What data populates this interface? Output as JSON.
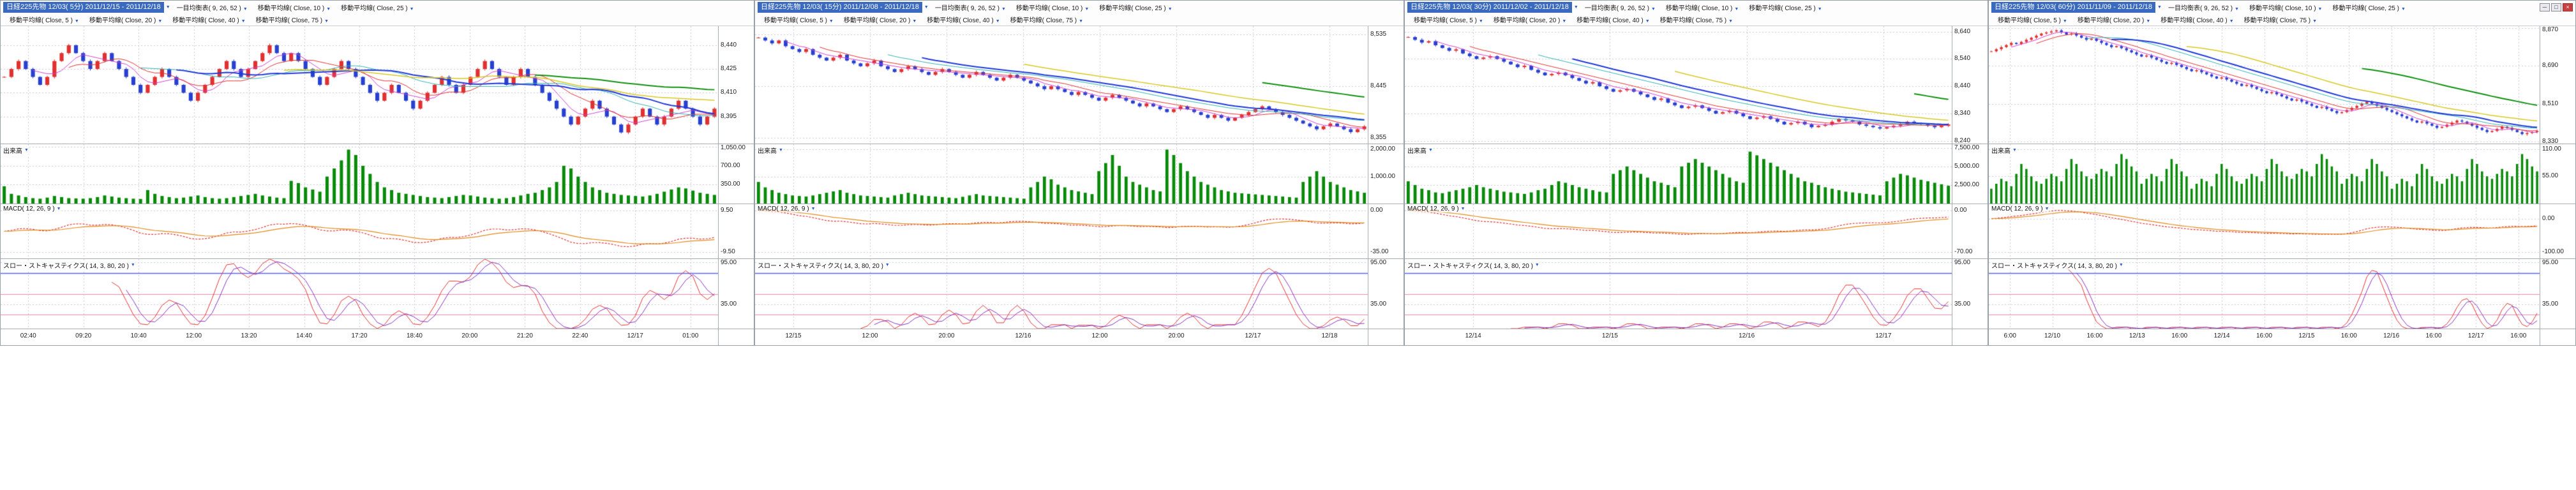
{
  "icons": {
    "dropdown": "▼",
    "minimize": "─",
    "maximize": "□",
    "close": "×"
  },
  "colors": {
    "title_bg": "#3a6abf",
    "title_text": "#ffffff",
    "up": "#e03030",
    "down": "#2840d0",
    "ma5": "#d040d0",
    "ma10": "#e03030",
    "ma20": "#30b0b0",
    "ma25": "#2038d8",
    "ma40": "#d8c820",
    "ma75": "#109010",
    "volume": "#0a8a0a",
    "macd": "#e03030",
    "macd_signal": "#e08818",
    "stoch_k": "#e03030",
    "stoch_d": "#8030c0",
    "stoch_80": "#5566ee",
    "stoch_20": "#ee88aa",
    "grid": "#c8c8d4",
    "axis_text": "#333333"
  },
  "panels": [
    {
      "title": "日経225先物 12/03( 5分) 2011/12/15 - 2011/12/18",
      "indicators_row1": [
        "一目均衡表( 9, 26, 52 )",
        "移動平均線( Close, 10 )",
        "移動平均線( Close, 25 )"
      ],
      "indicators_row2": [
        "移動平均線( Close, 5 )",
        "移動平均線( Close, 20 )",
        "移動平均線( Close, 40 )",
        "移動平均線( Close, 75 )"
      ],
      "volume_label": "出来高",
      "macd_label": "MACD( 12, 26, 9 )",
      "stoch_label": "スロー・ストキャスティクス( 14, 3, 80, 20 )",
      "price_axis": [
        "8,440",
        "8,425",
        "8,410",
        "8,395"
      ],
      "volume_axis": [
        "1,050.00",
        "700.00",
        "350.00"
      ],
      "macd_axis": [
        "9.50",
        "-9.50"
      ],
      "stoch_axis": [
        "95.00",
        "35.00"
      ]
    },
    {
      "title": "日経225先物 12/03( 15分) 2011/12/08 - 2011/12/18",
      "indicators_row1": [
        "一目均衡表( 9, 26, 52 )",
        "移動平均線( Close, 10 )",
        "移動平均線( Close, 25 )"
      ],
      "indicators_row2": [
        "移動平均線( Close, 5 )",
        "移動平均線( Close, 20 )",
        "移動平均線( Close, 40 )",
        "移動平均線( Close, 75 )"
      ],
      "volume_label": "出来高",
      "macd_label": "MACD( 12, 26, 9 )",
      "stoch_label": "スロー・ストキャスティクス( 14, 3, 80, 20 )",
      "price_axis": [
        "8,535",
        "8,445",
        "8,355"
      ],
      "volume_axis": [
        "2,000.00",
        "1,000.00"
      ],
      "macd_axis": [
        "0.00",
        "-35.00"
      ],
      "stoch_axis": [
        "95.00",
        "35.00"
      ]
    },
    {
      "title": "日経225先物 12/03( 30分) 2011/12/02 - 2011/12/18",
      "indicators_row1": [
        "一目均衡表( 9, 26, 52 )",
        "移動平均線( Close, 10 )",
        "移動平均線( Close, 25 )"
      ],
      "indicators_row2": [
        "移動平均線( Close, 5 )",
        "移動平均線( Close, 20 )",
        "移動平均線( Close, 40 )",
        "移動平均線( Close, 75 )"
      ],
      "volume_label": "出来高",
      "macd_label": "MACD( 12, 26, 9 )",
      "stoch_label": "スロー・ストキャスティクス( 14, 3, 80, 20 )",
      "price_axis": [
        "8,640",
        "8,540",
        "8,440",
        "8,340",
        "8,240"
      ],
      "volume_axis": [
        "7,500.00",
        "5,000.00",
        "2,500.00"
      ],
      "macd_axis": [
        "0.00",
        "-70.00"
      ],
      "stoch_axis": [
        "95.00",
        "35.00"
      ]
    },
    {
      "title": "日経225先物 12/03( 60分) 2011/11/09 - 2011/12/18",
      "indicators_row1": [
        "一目均衡表( 9, 26, 52 )",
        "移動平均線( Close, 10 )",
        "移動平均線( Close, 25 )"
      ],
      "indicators_row2": [
        "移動平均線( Close, 5 )",
        "移動平均線( Close, 20 )",
        "移動平均線( Close, 40 )",
        "移動平均線( Close, 75 )"
      ],
      "volume_label": "出来高",
      "macd_label": "MACD( 12, 26, 9 )",
      "stoch_label": "スロー・ストキャスティクス( 14, 3, 80, 20 )",
      "price_axis": [
        "8,870",
        "8,690",
        "8,510",
        "8,330"
      ],
      "volume_axis": [
        "110.00",
        "55.00"
      ],
      "macd_axis": [
        "0.00",
        "-100.00"
      ],
      "stoch_axis": [
        "95.00",
        "35.00"
      ]
    }
  ],
  "chart_data": [
    {
      "type": "candlestick",
      "title": "日経225先物 12/03( 5分) 2011/12/15 - 2011/12/18",
      "timeframe": "5分",
      "x_labels": [
        "02:40",
        "09:20",
        "10:40",
        "12:00",
        "13:20",
        "14:40",
        "17:20",
        "18:40",
        "20:00",
        "21:20",
        "22:40",
        "12/17",
        "01:00"
      ],
      "price_range": [
        8378,
        8452
      ],
      "price_grid": [
        8440,
        8425,
        8410,
        8395
      ],
      "ma_periods": [
        5,
        10,
        20,
        25,
        40,
        75
      ],
      "ichimoku_params": [
        9,
        26,
        52
      ],
      "macd_params": [
        12,
        26,
        9
      ],
      "stoch_params": [
        14,
        3,
        3
      ],
      "stoch_levels": [
        80,
        50,
        20
      ],
      "stoch_grid": [
        95,
        35
      ],
      "macd_grid": [
        9.5,
        -9.5
      ],
      "volume_grid": [
        1050,
        700,
        350
      ],
      "volume_max": 1100,
      "closes": [
        8420,
        8425,
        8430,
        8425,
        8420,
        8415,
        8420,
        8430,
        8435,
        8440,
        8435,
        8430,
        8425,
        8430,
        8435,
        8430,
        8425,
        8420,
        8415,
        8410,
        8415,
        8420,
        8425,
        8420,
        8415,
        8410,
        8405,
        8410,
        8415,
        8420,
        8425,
        8430,
        8425,
        8420,
        8425,
        8430,
        8435,
        8440,
        8435,
        8430,
        8435,
        8430,
        8425,
        8420,
        8415,
        8420,
        8425,
        8430,
        8425,
        8420,
        8415,
        8410,
        8405,
        8410,
        8415,
        8410,
        8405,
        8400,
        8405,
        8410,
        8415,
        8420,
        8415,
        8410,
        8415,
        8420,
        8425,
        8430,
        8425,
        8420,
        8415,
        8420,
        8425,
        8420,
        8415,
        8410,
        8405,
        8400,
        8395,
        8390,
        8395,
        8400,
        8405,
        8400,
        8395,
        8390,
        8385,
        8390,
        8395,
        8400,
        8395,
        8390,
        8395,
        8400,
        8405,
        8400,
        8395,
        8390,
        8395,
        8400
      ],
      "volumes": [
        320,
        180,
        150,
        120,
        100,
        90,
        110,
        140,
        120,
        100,
        95,
        90,
        100,
        120,
        150,
        130,
        110,
        100,
        90,
        85,
        250,
        180,
        140,
        120,
        100,
        110,
        130,
        150,
        120,
        100,
        90,
        100,
        120,
        140,
        160,
        180,
        150,
        130,
        110,
        100,
        420,
        380,
        300,
        260,
        220,
        500,
        650,
        800,
        1000,
        900,
        700,
        550,
        400,
        300,
        250,
        200,
        180,
        160,
        140,
        120,
        110,
        100,
        120,
        140,
        160,
        150,
        130,
        110,
        100,
        90,
        100,
        120,
        150,
        180,
        200,
        250,
        300,
        400,
        700,
        650,
        500,
        400,
        300,
        250,
        200,
        180,
        160,
        150,
        140,
        130,
        150,
        180,
        220,
        260,
        300,
        280,
        240,
        200,
        180,
        160
      ]
    },
    {
      "type": "candlestick",
      "title": "日経225先物 12/03( 15分) 2011/12/08 - 2011/12/18",
      "timeframe": "15分",
      "x_labels": [
        "12/15",
        "12:00",
        "20:00",
        "12/16",
        "12:00",
        "20:00",
        "12/17",
        "12/18"
      ],
      "price_range": [
        8345,
        8550
      ],
      "price_grid": [
        8535,
        8445,
        8355
      ],
      "ma_periods": [
        5,
        10,
        20,
        25,
        40,
        75
      ],
      "ichimoku_params": [
        9,
        26,
        52
      ],
      "macd_params": [
        12,
        26,
        9
      ],
      "stoch_params": [
        14,
        3,
        3
      ],
      "stoch_levels": [
        80,
        50,
        20
      ],
      "stoch_grid": [
        95,
        35
      ],
      "macd_grid": [
        0,
        -35
      ],
      "volume_grid": [
        2000,
        1000
      ],
      "volume_max": 2200,
      "closes": [
        8530,
        8525,
        8520,
        8525,
        8515,
        8510,
        8505,
        8510,
        8500,
        8495,
        8490,
        8495,
        8500,
        8490,
        8485,
        8480,
        8485,
        8490,
        8480,
        8475,
        8470,
        8475,
        8480,
        8475,
        8470,
        8465,
        8470,
        8475,
        8470,
        8465,
        8460,
        8465,
        8470,
        8465,
        8460,
        8455,
        8460,
        8465,
        8460,
        8455,
        8450,
        8445,
        8440,
        8445,
        8440,
        8435,
        8430,
        8435,
        8430,
        8425,
        8420,
        8425,
        8430,
        8425,
        8420,
        8415,
        8410,
        8415,
        8410,
        8405,
        8400,
        8405,
        8410,
        8405,
        8400,
        8395,
        8390,
        8395,
        8390,
        8385,
        8390,
        8395,
        8400,
        8405,
        8410,
        8405,
        8400,
        8395,
        8390,
        8385,
        8380,
        8375,
        8370,
        8375,
        8380,
        8375,
        8370,
        8365,
        8370,
        8375
      ],
      "volumes": [
        800,
        600,
        500,
        400,
        350,
        300,
        280,
        260,
        300,
        350,
        400,
        450,
        500,
        400,
        350,
        300,
        280,
        260,
        240,
        220,
        300,
        350,
        400,
        350,
        300,
        280,
        260,
        240,
        220,
        200,
        250,
        300,
        350,
        300,
        280,
        260,
        240,
        220,
        200,
        180,
        600,
        800,
        1000,
        900,
        700,
        600,
        500,
        450,
        400,
        350,
        1200,
        1500,
        1800,
        1400,
        1000,
        800,
        700,
        600,
        500,
        450,
        2000,
        1800,
        1500,
        1200,
        1000,
        800,
        700,
        600,
        500,
        450,
        400,
        380,
        360,
        340,
        320,
        300,
        280,
        260,
        240,
        220,
        800,
        1000,
        1200,
        1000,
        800,
        700,
        600,
        500,
        450,
        400
      ]
    },
    {
      "type": "candlestick",
      "title": "日経225先物 12/03( 30分) 2011/12/02 - 2011/12/18",
      "timeframe": "30分",
      "x_labels": [
        "12/14",
        "12/15",
        "12/16",
        "12/17"
      ],
      "price_range": [
        8230,
        8660
      ],
      "price_grid": [
        8640,
        8540,
        8440,
        8340,
        8240
      ],
      "ma_periods": [
        5,
        10,
        20,
        25,
        40,
        75
      ],
      "ichimoku_params": [
        9,
        26,
        52
      ],
      "macd_params": [
        12,
        26,
        9
      ],
      "stoch_params": [
        14,
        3,
        3
      ],
      "stoch_levels": [
        80,
        50,
        20
      ],
      "stoch_grid": [
        95,
        35
      ],
      "macd_grid": [
        0,
        -70
      ],
      "volume_grid": [
        7500,
        5000,
        2500
      ],
      "volume_max": 8000,
      "closes": [
        8620,
        8610,
        8600,
        8605,
        8590,
        8580,
        8570,
        8575,
        8560,
        8550,
        8540,
        8545,
        8550,
        8540,
        8530,
        8520,
        8510,
        8515,
        8500,
        8490,
        8480,
        8485,
        8490,
        8480,
        8470,
        8460,
        8450,
        8455,
        8440,
        8430,
        8420,
        8425,
        8430,
        8420,
        8410,
        8400,
        8390,
        8395,
        8380,
        8370,
        8360,
        8365,
        8370,
        8360,
        8350,
        8340,
        8345,
        8350,
        8340,
        8330,
        8320,
        8325,
        8330,
        8320,
        8310,
        8300,
        8305,
        8310,
        8300,
        8290,
        8295,
        8300,
        8310,
        8320,
        8315,
        8310,
        8300,
        8295,
        8290,
        8285,
        8290,
        8295,
        8300,
        8310,
        8305,
        8300,
        8295,
        8290,
        8295,
        8300
      ],
      "volumes": [
        3000,
        2500,
        2000,
        1800,
        1500,
        1400,
        1600,
        1800,
        2000,
        2200,
        2500,
        2200,
        2000,
        1800,
        1600,
        1500,
        1400,
        1300,
        1500,
        1800,
        2000,
        2500,
        3000,
        2800,
        2500,
        2200,
        2000,
        1800,
        1600,
        1500,
        4000,
        4500,
        5000,
        4500,
        4000,
        3500,
        3000,
        2800,
        2500,
        2200,
        5000,
        5500,
        6000,
        5500,
        5000,
        4500,
        4000,
        3500,
        3000,
        2800,
        7000,
        6500,
        6000,
        5500,
        5000,
        4500,
        4000,
        3500,
        3000,
        2800,
        2500,
        2200,
        2000,
        1800,
        1600,
        1500,
        1400,
        1300,
        1200,
        1100,
        3000,
        3500,
        4000,
        3800,
        3500,
        3200,
        3000,
        2800,
        2600,
        2400
      ]
    },
    {
      "type": "candlestick",
      "title": "日経225先物 12/03( 60分) 2011/11/09 - 2011/12/18",
      "timeframe": "60分",
      "x_labels": [
        "6:00",
        "12/10",
        "16:00",
        "12/13",
        "16:00",
        "12/14",
        "16:00",
        "12/15",
        "16:00",
        "12/16",
        "16:00",
        "12/17",
        "16:00"
      ],
      "price_range": [
        8320,
        8880
      ],
      "price_grid": [
        8870,
        8690,
        8510,
        8330
      ],
      "ma_periods": [
        5,
        10,
        20,
        25,
        40,
        75
      ],
      "ichimoku_params": [
        9,
        26,
        52
      ],
      "macd_params": [
        12,
        26,
        9
      ],
      "stoch_params": [
        14,
        3,
        3
      ],
      "stoch_levels": [
        80,
        50,
        20
      ],
      "stoch_grid": [
        95,
        35
      ],
      "macd_grid": [
        0,
        -100
      ],
      "volume_grid": [
        110,
        55
      ],
      "volume_max": 120,
      "closes": [
        8760,
        8770,
        8780,
        8790,
        8800,
        8795,
        8805,
        8815,
        8825,
        8835,
        8845,
        8850,
        8855,
        8860,
        8850,
        8840,
        8845,
        8835,
        8825,
        8815,
        8820,
        8810,
        8800,
        8790,
        8780,
        8785,
        8775,
        8765,
        8755,
        8745,
        8735,
        8740,
        8730,
        8720,
        8710,
        8700,
        8705,
        8695,
        8685,
        8675,
        8665,
        8670,
        8660,
        8650,
        8640,
        8630,
        8635,
        8625,
        8615,
        8605,
        8595,
        8600,
        8590,
        8580,
        8570,
        8560,
        8565,
        8555,
        8545,
        8535,
        8525,
        8530,
        8520,
        8510,
        8500,
        8490,
        8495,
        8485,
        8475,
        8465,
        8470,
        8480,
        8490,
        8500,
        8510,
        8520,
        8510,
        8500,
        8490,
        8480,
        8470,
        8460,
        8450,
        8440,
        8430,
        8420,
        8425,
        8415,
        8405,
        8395,
        8400,
        8410,
        8420,
        8430,
        8425,
        8415,
        8405,
        8395,
        8385,
        8375,
        8380,
        8390,
        8400,
        8395,
        8385,
        8375,
        8365,
        8370,
        8375,
        8380
      ],
      "volumes": [
        30,
        40,
        50,
        45,
        35,
        60,
        80,
        70,
        55,
        45,
        40,
        50,
        60,
        55,
        45,
        70,
        90,
        80,
        65,
        55,
        50,
        60,
        70,
        65,
        55,
        80,
        100,
        90,
        75,
        65,
        40,
        50,
        60,
        55,
        45,
        70,
        90,
        80,
        65,
        55,
        30,
        40,
        50,
        45,
        35,
        60,
        80,
        70,
        55,
        45,
        40,
        50,
        60,
        55,
        45,
        70,
        90,
        80,
        65,
        55,
        50,
        60,
        70,
        65,
        55,
        80,
        100,
        90,
        75,
        65,
        40,
        50,
        60,
        55,
        45,
        70,
        90,
        80,
        65,
        55,
        30,
        40,
        50,
        45,
        35,
        60,
        80,
        70,
        55,
        45,
        40,
        50,
        60,
        55,
        45,
        70,
        90,
        80,
        65,
        55,
        50,
        60,
        70,
        65,
        55,
        80,
        100,
        90,
        75,
        65
      ]
    }
  ]
}
